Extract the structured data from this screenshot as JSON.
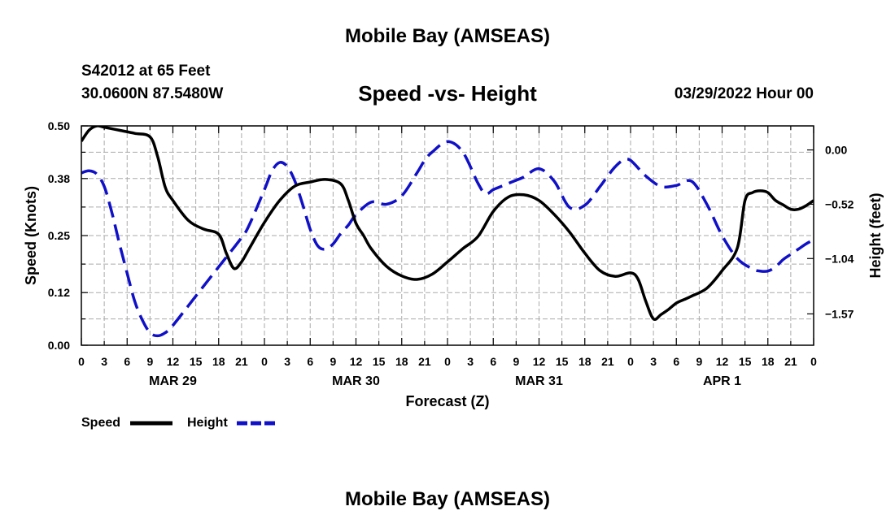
{
  "header": {
    "title": "Mobile Bay (AMSEAS)",
    "station": "S42012 at 65 Feet",
    "coords": "30.0600N  87.5480W",
    "chart_title": "Speed -vs- Height",
    "datetime": "03/29/2022 Hour 00",
    "footer_title": "Mobile Bay (AMSEAS)"
  },
  "colors": {
    "speed": "#000000",
    "height": "#1010c8",
    "grid": "#aaaaaa"
  },
  "chart_data": {
    "type": "line",
    "title": "Speed -vs- Height",
    "xlabel": "Forecast (Z)",
    "ylabel": "Speed (Knots)",
    "y2label": "Height (feet)",
    "xlim": [
      0,
      96
    ],
    "ylim": [
      0,
      0.5
    ],
    "y2lim": [
      -1.87,
      0.23
    ],
    "grid": true,
    "x_ticks": [
      0,
      3,
      6,
      9,
      12,
      15,
      18,
      21,
      24,
      27,
      30,
      33,
      36,
      39,
      42,
      45,
      48,
      51,
      54,
      57,
      60,
      63,
      66,
      69,
      72,
      75,
      78,
      81,
      84,
      87,
      90,
      93,
      96
    ],
    "x_tick_labels": [
      "0",
      "3",
      "6",
      "9",
      "12",
      "15",
      "18",
      "21",
      "0",
      "3",
      "6",
      "9",
      "12",
      "15",
      "18",
      "21",
      "0",
      "3",
      "6",
      "9",
      "12",
      "15",
      "18",
      "21",
      "0",
      "3",
      "6",
      "9",
      "12",
      "15",
      "18",
      "21",
      "0"
    ],
    "day_labels": [
      {
        "x": 12,
        "label": "MAR 29"
      },
      {
        "x": 36,
        "label": "MAR 30"
      },
      {
        "x": 60,
        "label": "MAR 31"
      },
      {
        "x": 84,
        "label": "APR 1"
      }
    ],
    "y_ticks": [
      0.0,
      0.12,
      0.25,
      0.38,
      0.5
    ],
    "y_tick_labels": [
      "0.00",
      "0.12",
      "0.25",
      "0.38",
      "0.50"
    ],
    "y2_ticks": [
      0.0,
      -0.52,
      -1.04,
      -1.57
    ],
    "y2_tick_labels": [
      "0.00",
      "−0.52",
      "−1.04",
      "−1.57"
    ],
    "legend": [
      {
        "label": "Speed",
        "style": "solid"
      },
      {
        "label": "Height",
        "style": "dashed"
      }
    ],
    "series": [
      {
        "name": "Speed",
        "axis": "left",
        "style": "solid",
        "x": [
          0,
          1,
          2,
          3,
          5,
          7,
          9,
          10,
          11,
          12,
          14,
          16,
          18,
          19,
          20,
          21,
          22,
          24,
          26,
          28,
          30,
          32,
          34,
          35,
          36,
          37,
          38,
          40,
          42,
          44,
          46,
          48,
          50,
          52,
          54,
          56,
          58,
          60,
          62,
          64,
          66,
          68,
          70,
          72,
          73,
          74,
          75,
          76,
          77,
          78,
          79,
          80,
          82,
          84,
          86,
          87,
          88,
          89,
          90,
          91,
          92,
          93,
          94,
          95,
          96
        ],
        "y": [
          0.465,
          0.49,
          0.5,
          0.497,
          0.49,
          0.483,
          0.475,
          0.43,
          0.36,
          0.33,
          0.285,
          0.265,
          0.253,
          0.21,
          0.175,
          0.19,
          0.22,
          0.28,
          0.33,
          0.363,
          0.372,
          0.378,
          0.368,
          0.33,
          0.278,
          0.25,
          0.22,
          0.18,
          0.158,
          0.15,
          0.162,
          0.19,
          0.22,
          0.248,
          0.305,
          0.338,
          0.343,
          0.33,
          0.298,
          0.258,
          0.21,
          0.17,
          0.157,
          0.165,
          0.15,
          0.1,
          0.06,
          0.07,
          0.082,
          0.096,
          0.104,
          0.112,
          0.13,
          0.17,
          0.222,
          0.33,
          0.348,
          0.352,
          0.348,
          0.33,
          0.32,
          0.31,
          0.31,
          0.318,
          0.33
        ]
      },
      {
        "name": "Height",
        "axis": "right",
        "style": "dashed",
        "x": [
          0,
          1,
          2,
          3,
          4,
          5,
          6,
          7,
          8,
          9,
          10,
          11,
          12,
          15,
          18,
          21,
          22,
          24,
          25,
          26,
          27,
          28,
          29,
          30,
          31,
          32,
          33,
          34,
          35,
          36,
          38,
          40,
          42,
          44,
          45,
          46,
          48,
          50,
          52,
          53,
          54,
          55,
          56,
          57,
          58,
          60,
          62,
          64,
          66,
          68,
          69,
          70,
          71,
          72,
          74,
          76,
          78,
          80,
          82,
          84,
          86,
          88,
          89,
          90,
          91,
          92,
          93,
          94,
          95,
          96
        ],
        "y": [
          -0.22,
          -0.2,
          -0.23,
          -0.35,
          -0.6,
          -0.9,
          -1.18,
          -1.45,
          -1.63,
          -1.75,
          -1.78,
          -1.75,
          -1.68,
          -1.4,
          -1.12,
          -0.84,
          -0.72,
          -0.38,
          -0.2,
          -0.12,
          -0.16,
          -0.3,
          -0.52,
          -0.76,
          -0.92,
          -0.95,
          -0.9,
          -0.8,
          -0.72,
          -0.62,
          -0.5,
          -0.52,
          -0.44,
          -0.22,
          -0.1,
          -0.02,
          0.08,
          -0.02,
          -0.32,
          -0.42,
          -0.38,
          -0.35,
          -0.32,
          -0.29,
          -0.26,
          -0.18,
          -0.3,
          -0.55,
          -0.53,
          -0.35,
          -0.25,
          -0.16,
          -0.1,
          -0.1,
          -0.25,
          -0.35,
          -0.34,
          -0.3,
          -0.52,
          -0.82,
          -1.04,
          -1.14,
          -1.16,
          -1.16,
          -1.12,
          -1.05,
          -1.0,
          -0.95,
          -0.9,
          -0.86
        ]
      }
    ]
  }
}
